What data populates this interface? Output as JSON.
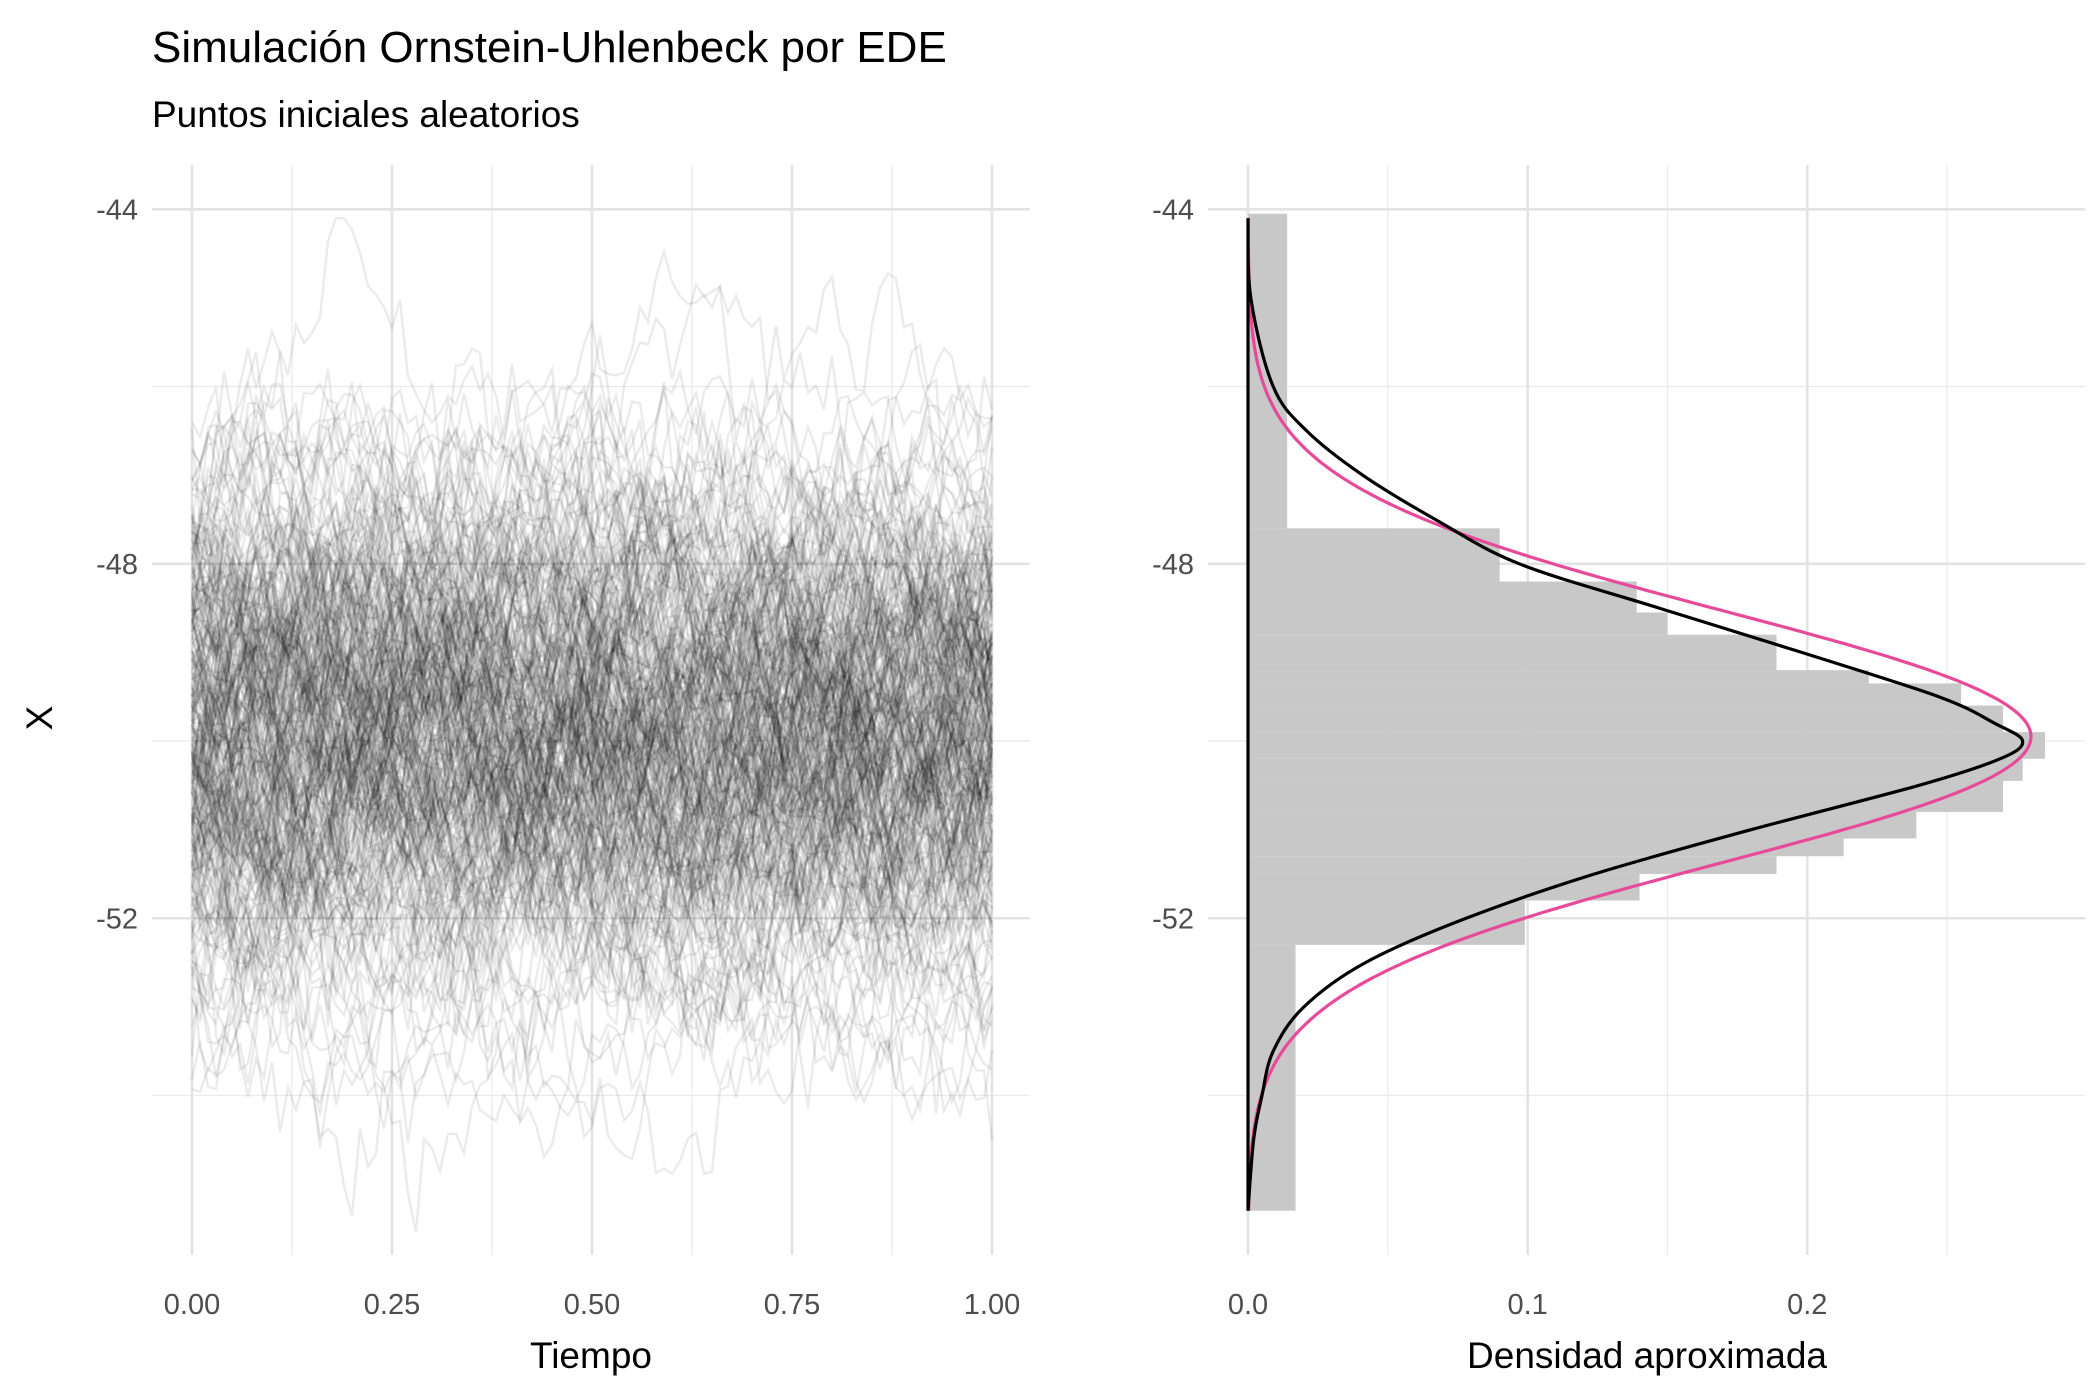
{
  "title": "Simulación Ornstein-Uhlenbeck por EDE",
  "subtitle": "Puntos iniciales aleatorios",
  "chart_data": [
    {
      "type": "line",
      "panel": "left",
      "xlabel": "Tiempo",
      "ylabel": "X",
      "xlim": [
        0,
        1
      ],
      "ylim": [
        -55.8,
        -43.5
      ],
      "xticks": [
        "0.00",
        "0.25",
        "0.50",
        "0.75",
        "1.00"
      ],
      "xtick_values": [
        0,
        0.25,
        0.5,
        0.75,
        1
      ],
      "yticks": [
        "-44",
        "-48",
        "-52"
      ],
      "ytick_values": [
        -44,
        -48,
        -52
      ],
      "grid": true,
      "color": "#000000",
      "line_alpha": 0.08,
      "series_count": 300,
      "steps": 100,
      "mean": -50,
      "sd": 1.5,
      "observed_range": [
        -55.6,
        -44.1
      ]
    },
    {
      "type": "bar",
      "panel": "right",
      "orientation": "horizontal",
      "xlabel": "Densidad aproximada",
      "ylabel": "",
      "xlim": [
        0,
        0.285
      ],
      "ylim": [
        -55.8,
        -43.5
      ],
      "xticks": [
        "0.0",
        "0.1",
        "0.2"
      ],
      "xtick_values": [
        0,
        0.1,
        0.2
      ],
      "yticks": [
        "-44",
        "-48",
        "-52"
      ],
      "ytick_values": [
        -44,
        -48,
        -52
      ],
      "grid": true,
      "bar_color": "#c8c8c8",
      "bins": [
        {
          "y0": -44.05,
          "y1": -47.6,
          "density": 0.014
        },
        {
          "y0": -47.6,
          "y1": -48.2,
          "density": 0.09
        },
        {
          "y0": -48.2,
          "y1": -48.55,
          "density": 0.139
        },
        {
          "y0": -48.55,
          "y1": -48.8,
          "density": 0.15
        },
        {
          "y0": -48.8,
          "y1": -49.2,
          "density": 0.189
        },
        {
          "y0": -49.2,
          "y1": -49.35,
          "density": 0.222
        },
        {
          "y0": -49.35,
          "y1": -49.6,
          "density": 0.255
        },
        {
          "y0": -49.6,
          "y1": -49.9,
          "density": 0.27
        },
        {
          "y0": -49.9,
          "y1": -50.2,
          "density": 0.285
        },
        {
          "y0": -50.2,
          "y1": -50.45,
          "density": 0.277
        },
        {
          "y0": -50.45,
          "y1": -50.8,
          "density": 0.27
        },
        {
          "y0": -50.8,
          "y1": -51.1,
          "density": 0.239
        },
        {
          "y0": -51.1,
          "y1": -51.3,
          "density": 0.213
        },
        {
          "y0": -51.3,
          "y1": -51.5,
          "density": 0.189
        },
        {
          "y0": -51.5,
          "y1": -51.8,
          "density": 0.14
        },
        {
          "y0": -51.8,
          "y1": -52.3,
          "density": 0.099
        },
        {
          "y0": -52.3,
          "y1": -55.3,
          "density": 0.017
        }
      ],
      "kde": {
        "color": "#000000",
        "y": [
          -44.1,
          -45.0,
          -46.0,
          -46.5,
          -47.0,
          -47.5,
          -48.0,
          -48.5,
          -49.0,
          -49.5,
          -49.8,
          -50.0,
          -50.2,
          -50.5,
          -51.0,
          -51.5,
          -52.0,
          -52.5,
          -53.0,
          -53.5,
          -54.0,
          -54.5,
          -55.3
        ],
        "density": [
          0.0,
          0.001,
          0.009,
          0.021,
          0.041,
          0.067,
          0.097,
          0.147,
          0.198,
          0.247,
          0.267,
          0.277,
          0.269,
          0.24,
          0.18,
          0.124,
          0.078,
          0.042,
          0.02,
          0.009,
          0.005,
          0.002,
          0.0
        ]
      },
      "normal_fit": {
        "color": "#e84a9a",
        "mean": -49.95,
        "sd": 1.42,
        "peak_density": 0.28,
        "y_range": [
          -44.1,
          -55.3
        ]
      }
    }
  ]
}
